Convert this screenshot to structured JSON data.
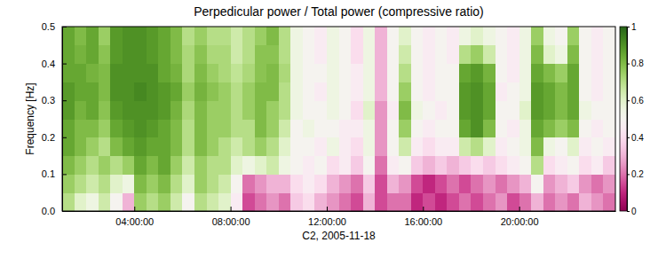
{
  "chart_data": {
    "type": "heatmap",
    "title": "Perpedicular power / Total power (compressive ratio)",
    "x_label": "C2, 2005-11-18",
    "y_label": "Frequency [Hz]",
    "x": [
      1.25,
      1.75,
      2.25,
      2.75,
      3.25,
      3.75,
      4.25,
      4.75,
      5.25,
      5.75,
      6.25,
      6.75,
      7.25,
      7.75,
      8.25,
      8.75,
      9.25,
      9.75,
      10.25,
      10.75,
      11.25,
      11.75,
      12.25,
      12.75,
      13.25,
      13.75,
      14.25,
      14.75,
      15.25,
      15.75,
      16.25,
      16.75,
      17.25,
      17.75,
      18.25,
      18.75,
      19.25,
      19.75,
      20.25,
      20.75,
      21.25,
      21.75,
      22.25,
      22.75,
      23.25,
      23.75
    ],
    "y": [
      0.025,
      0.075,
      0.125,
      0.175,
      0.225,
      0.275,
      0.325,
      0.375,
      0.425,
      0.475
    ],
    "values": [
      [
        0.7,
        0.6,
        0.55,
        0.65,
        0.5,
        0.3,
        0.75,
        0.7,
        0.75,
        0.65,
        0.5,
        0.7,
        0.65,
        0.6,
        0.45,
        0.15,
        0.2,
        0.25,
        0.2,
        0.35,
        0.4,
        0.3,
        0.25,
        0.2,
        0.15,
        0.3,
        0.15,
        0.2,
        0.2,
        0.1,
        0.15,
        0.1,
        0.15,
        0.2,
        0.15,
        0.2,
        0.25,
        0.15,
        0.2,
        0.3,
        0.2,
        0.25,
        0.2,
        0.3,
        0.25,
        0.2
      ],
      [
        0.75,
        0.7,
        0.65,
        0.7,
        0.6,
        0.55,
        0.8,
        0.75,
        0.8,
        0.7,
        0.6,
        0.75,
        0.7,
        0.65,
        0.5,
        0.2,
        0.25,
        0.3,
        0.3,
        0.4,
        0.45,
        0.4,
        0.3,
        0.25,
        0.2,
        0.35,
        0.15,
        0.3,
        0.25,
        0.15,
        0.1,
        0.15,
        0.2,
        0.15,
        0.2,
        0.25,
        0.2,
        0.25,
        0.3,
        0.5,
        0.25,
        0.3,
        0.35,
        0.25,
        0.2,
        0.25
      ],
      [
        0.8,
        0.75,
        0.7,
        0.75,
        0.7,
        0.75,
        0.85,
        0.8,
        0.85,
        0.75,
        0.65,
        0.75,
        0.7,
        0.7,
        0.6,
        0.55,
        0.6,
        0.65,
        0.55,
        0.5,
        0.45,
        0.5,
        0.4,
        0.45,
        0.35,
        0.5,
        0.2,
        0.45,
        0.5,
        0.35,
        0.3,
        0.35,
        0.3,
        0.35,
        0.4,
        0.35,
        0.4,
        0.45,
        0.5,
        0.7,
        0.4,
        0.45,
        0.5,
        0.4,
        0.45,
        0.35
      ],
      [
        0.85,
        0.8,
        0.75,
        0.7,
        0.8,
        0.85,
        0.88,
        0.85,
        0.85,
        0.8,
        0.7,
        0.8,
        0.75,
        0.7,
        0.65,
        0.7,
        0.75,
        0.7,
        0.6,
        0.5,
        0.5,
        0.45,
        0.55,
        0.45,
        0.4,
        0.55,
        0.25,
        0.5,
        0.65,
        0.45,
        0.4,
        0.45,
        0.45,
        0.65,
        0.7,
        0.6,
        0.45,
        0.5,
        0.55,
        0.8,
        0.55,
        0.5,
        0.6,
        0.45,
        0.5,
        0.45
      ],
      [
        0.85,
        0.8,
        0.8,
        0.75,
        0.85,
        0.88,
        0.9,
        0.88,
        0.85,
        0.8,
        0.7,
        0.8,
        0.75,
        0.75,
        0.7,
        0.7,
        0.8,
        0.75,
        0.65,
        0.5,
        0.55,
        0.5,
        0.5,
        0.45,
        0.45,
        0.55,
        0.25,
        0.5,
        0.75,
        0.5,
        0.45,
        0.5,
        0.5,
        0.85,
        0.9,
        0.8,
        0.5,
        0.45,
        0.55,
        0.85,
        0.8,
        0.75,
        0.8,
        0.5,
        0.45,
        0.5
      ],
      [
        0.88,
        0.82,
        0.85,
        0.78,
        0.88,
        0.9,
        0.9,
        0.9,
        0.88,
        0.82,
        0.72,
        0.8,
        0.75,
        0.75,
        0.7,
        0.75,
        0.8,
        0.75,
        0.7,
        0.55,
        0.5,
        0.5,
        0.55,
        0.5,
        0.4,
        0.6,
        0.25,
        0.45,
        0.8,
        0.55,
        0.5,
        0.45,
        0.5,
        0.88,
        0.9,
        0.85,
        0.5,
        0.5,
        0.6,
        0.88,
        0.85,
        0.8,
        0.85,
        0.55,
        0.5,
        0.5
      ],
      [
        0.88,
        0.85,
        0.85,
        0.8,
        0.9,
        0.9,
        0.92,
        0.9,
        0.88,
        0.85,
        0.75,
        0.82,
        0.78,
        0.75,
        0.7,
        0.75,
        0.8,
        0.8,
        0.7,
        0.55,
        0.5,
        0.45,
        0.55,
        0.5,
        0.45,
        0.55,
        0.3,
        0.5,
        0.75,
        0.5,
        0.45,
        0.5,
        0.5,
        0.88,
        0.9,
        0.85,
        0.45,
        0.5,
        0.55,
        0.88,
        0.85,
        0.8,
        0.85,
        0.5,
        0.45,
        0.5
      ],
      [
        0.85,
        0.85,
        0.82,
        0.8,
        0.9,
        0.9,
        0.9,
        0.9,
        0.85,
        0.82,
        0.72,
        0.8,
        0.75,
        0.72,
        0.68,
        0.72,
        0.78,
        0.8,
        0.72,
        0.55,
        0.5,
        0.5,
        0.55,
        0.5,
        0.45,
        0.55,
        0.3,
        0.5,
        0.7,
        0.5,
        0.45,
        0.5,
        0.5,
        0.85,
        0.88,
        0.82,
        0.5,
        0.45,
        0.55,
        0.85,
        0.8,
        0.75,
        0.85,
        0.5,
        0.45,
        0.5
      ],
      [
        0.85,
        0.82,
        0.85,
        0.78,
        0.88,
        0.9,
        0.9,
        0.88,
        0.85,
        0.8,
        0.72,
        0.78,
        0.72,
        0.72,
        0.65,
        0.7,
        0.78,
        0.78,
        0.7,
        0.55,
        0.5,
        0.45,
        0.55,
        0.5,
        0.4,
        0.55,
        0.3,
        0.5,
        0.65,
        0.5,
        0.45,
        0.5,
        0.45,
        0.7,
        0.75,
        0.65,
        0.5,
        0.45,
        0.55,
        0.8,
        0.6,
        0.55,
        0.8,
        0.5,
        0.45,
        0.5
      ],
      [
        0.85,
        0.8,
        0.85,
        0.75,
        0.88,
        0.9,
        0.9,
        0.88,
        0.85,
        0.8,
        0.7,
        0.75,
        0.7,
        0.7,
        0.65,
        0.7,
        0.75,
        0.8,
        0.7,
        0.55,
        0.5,
        0.45,
        0.55,
        0.5,
        0.4,
        0.55,
        0.3,
        0.5,
        0.6,
        0.5,
        0.45,
        0.5,
        0.45,
        0.55,
        0.6,
        0.55,
        0.5,
        0.45,
        0.55,
        0.75,
        0.55,
        0.5,
        0.75,
        0.5,
        0.45,
        0.5
      ]
    ],
    "xlim": [
      1,
      24
    ],
    "ylim": [
      0,
      0.5
    ],
    "xticks": [
      {
        "value": 4,
        "label": "04:00:00"
      },
      {
        "value": 8,
        "label": "08:00:00"
      },
      {
        "value": 12,
        "label": "12:00:00"
      },
      {
        "value": 16,
        "label": "16:00:00"
      },
      {
        "value": 20,
        "label": "20:00:00"
      }
    ],
    "yticks": [
      {
        "value": 0,
        "label": "0.0"
      },
      0.1,
      0.2,
      0.3,
      0.4,
      0.5
    ],
    "colorbar": {
      "range": [
        0,
        1
      ],
      "ticks": [
        0,
        0.2,
        0.4,
        0.6,
        0.8,
        1
      ]
    }
  }
}
